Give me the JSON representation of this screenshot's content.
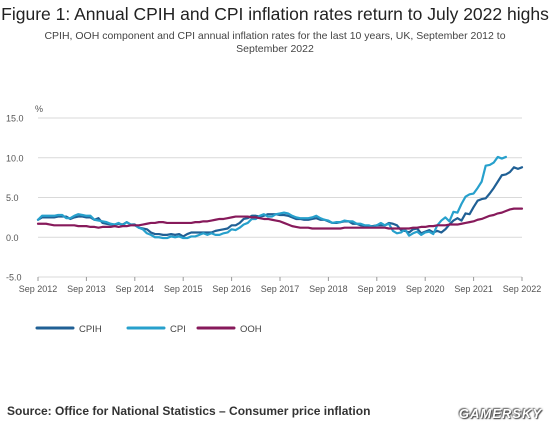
{
  "title": "Figure 1: Annual CPIH and CPI inflation rates return to July 2022 highs",
  "subtitle": "CPIH, OOH component and CPI annual inflation rates for the last 10 years, UK, September 2012 to September 2022",
  "source": "Source: Office for National Statistics – Consumer price inflation",
  "watermark": "GAMERSKY",
  "chart_data": {
    "type": "line",
    "ylabel": "%",
    "ylim": [
      -5,
      15
    ],
    "y_ticks": [
      "15.0",
      "10.0",
      "5.0",
      "0.0",
      "-5.0"
    ],
    "x_ticks": [
      "Sep 2012",
      "Sep 2013",
      "Sep 2014",
      "Sep 2015",
      "Sep 2016",
      "Sep 2017",
      "Sep 2018",
      "Sep 2019",
      "Sep 2020",
      "Sep 2021",
      "Sep 2022"
    ],
    "x_start": "Sep 2012",
    "x_end": "Sep 2022",
    "grid": true,
    "legend_position": "bottom-left",
    "series": [
      {
        "name": "CPIH",
        "color": "#206095",
        "values": [
          2.2,
          2.5,
          2.5,
          2.5,
          2.5,
          2.6,
          2.6,
          2.6,
          2.3,
          2.5,
          2.6,
          2.6,
          2.5,
          2.5,
          2.2,
          2.4,
          1.8,
          1.7,
          1.6,
          1.6,
          1.7,
          1.6,
          1.9,
          1.6,
          1.6,
          1.2,
          1.1,
          1.0,
          0.6,
          0.4,
          0.4,
          0.3,
          0.3,
          0.4,
          0.3,
          0.4,
          0.1,
          0.4,
          0.6,
          0.6,
          0.6,
          0.6,
          0.6,
          0.6,
          0.8,
          0.9,
          1.0,
          1.1,
          1.5,
          1.5,
          1.8,
          2.3,
          2.4,
          2.7,
          2.7,
          2.6,
          2.7,
          2.9,
          2.9,
          2.9,
          2.8,
          2.8,
          2.7,
          2.5,
          2.3,
          2.3,
          2.2,
          2.2,
          2.3,
          2.4,
          2.2,
          2.2,
          2.0,
          1.8,
          1.8,
          1.9,
          2.0,
          2.0,
          1.7,
          1.7,
          1.5,
          1.4,
          1.4,
          1.4,
          1.5,
          1.5,
          1.5,
          1.8,
          1.7,
          1.5,
          0.9,
          0.8,
          0.6,
          1.0,
          1.1,
          0.5,
          0.7,
          0.9,
          0.6,
          0.8,
          0.6,
          1.0,
          1.6,
          2.1,
          2.4,
          2.1,
          3.0,
          2.9,
          3.8,
          4.6,
          4.8,
          4.9,
          5.5,
          6.2,
          7.0,
          7.8,
          7.9,
          8.2,
          8.8,
          8.6,
          8.8
        ]
      },
      {
        "name": "CPI",
        "color": "#27a0cc",
        "values": [
          2.2,
          2.7,
          2.7,
          2.7,
          2.7,
          2.8,
          2.8,
          2.4,
          2.4,
          2.7,
          2.9,
          2.8,
          2.7,
          2.7,
          2.2,
          2.1,
          2.0,
          1.9,
          1.7,
          1.6,
          1.8,
          1.5,
          1.9,
          1.6,
          1.5,
          1.2,
          1.0,
          0.5,
          0.3,
          0.0,
          0.0,
          -0.1,
          -0.1,
          0.1,
          0.0,
          0.1,
          -0.1,
          -0.1,
          0.1,
          0.1,
          0.3,
          0.5,
          0.3,
          0.5,
          0.3,
          0.3,
          0.5,
          0.6,
          1.0,
          0.9,
          1.2,
          1.6,
          1.8,
          2.3,
          2.3,
          2.7,
          2.9,
          2.6,
          2.6,
          2.9,
          3.0,
          3.1,
          3.0,
          2.7,
          2.5,
          2.4,
          2.4,
          2.4,
          2.5,
          2.7,
          2.4,
          2.2,
          2.1,
          1.8,
          1.9,
          1.9,
          2.1,
          2.0,
          2.0,
          1.7,
          1.7,
          1.5,
          1.5,
          1.3,
          1.5,
          1.8,
          1.5,
          1.7,
          0.8,
          0.5,
          0.6,
          1.0,
          0.2,
          0.5,
          0.7,
          0.3,
          0.6,
          0.7,
          0.4,
          1.5,
          2.1,
          2.5,
          2.0,
          3.2,
          3.1,
          4.2,
          5.1,
          5.4,
          5.5,
          6.2,
          7.0,
          9.0,
          9.1,
          9.4,
          10.1,
          9.9,
          10.1
        ]
      },
      {
        "name": "OOH",
        "color": "#871a5b",
        "values": [
          1.7,
          1.7,
          1.7,
          1.6,
          1.5,
          1.5,
          1.5,
          1.5,
          1.5,
          1.5,
          1.4,
          1.4,
          1.4,
          1.3,
          1.3,
          1.2,
          1.3,
          1.3,
          1.3,
          1.4,
          1.3,
          1.4,
          1.4,
          1.5,
          1.5,
          1.5,
          1.6,
          1.7,
          1.8,
          1.8,
          1.9,
          1.9,
          1.8,
          1.8,
          1.8,
          1.8,
          1.8,
          1.8,
          1.8,
          1.9,
          1.9,
          2.0,
          2.0,
          2.1,
          2.2,
          2.3,
          2.3,
          2.4,
          2.5,
          2.6,
          2.6,
          2.6,
          2.6,
          2.5,
          2.5,
          2.4,
          2.3,
          2.3,
          2.2,
          2.1,
          2.0,
          1.8,
          1.6,
          1.4,
          1.3,
          1.2,
          1.2,
          1.2,
          1.1,
          1.1,
          1.1,
          1.1,
          1.1,
          1.1,
          1.1,
          1.1,
          1.2,
          1.2,
          1.2,
          1.2,
          1.2,
          1.2,
          1.2,
          1.2,
          1.2,
          1.2,
          1.2,
          1.1,
          1.1,
          1.1,
          1.1,
          1.1,
          1.1,
          1.2,
          1.2,
          1.3,
          1.3,
          1.4,
          1.4,
          1.5,
          1.5,
          1.5,
          1.6,
          1.6,
          1.6,
          1.7,
          1.8,
          1.9,
          2.0,
          2.2,
          2.3,
          2.5,
          2.7,
          2.8,
          3.0,
          3.1,
          3.3,
          3.5,
          3.6,
          3.6,
          3.6
        ]
      }
    ]
  }
}
